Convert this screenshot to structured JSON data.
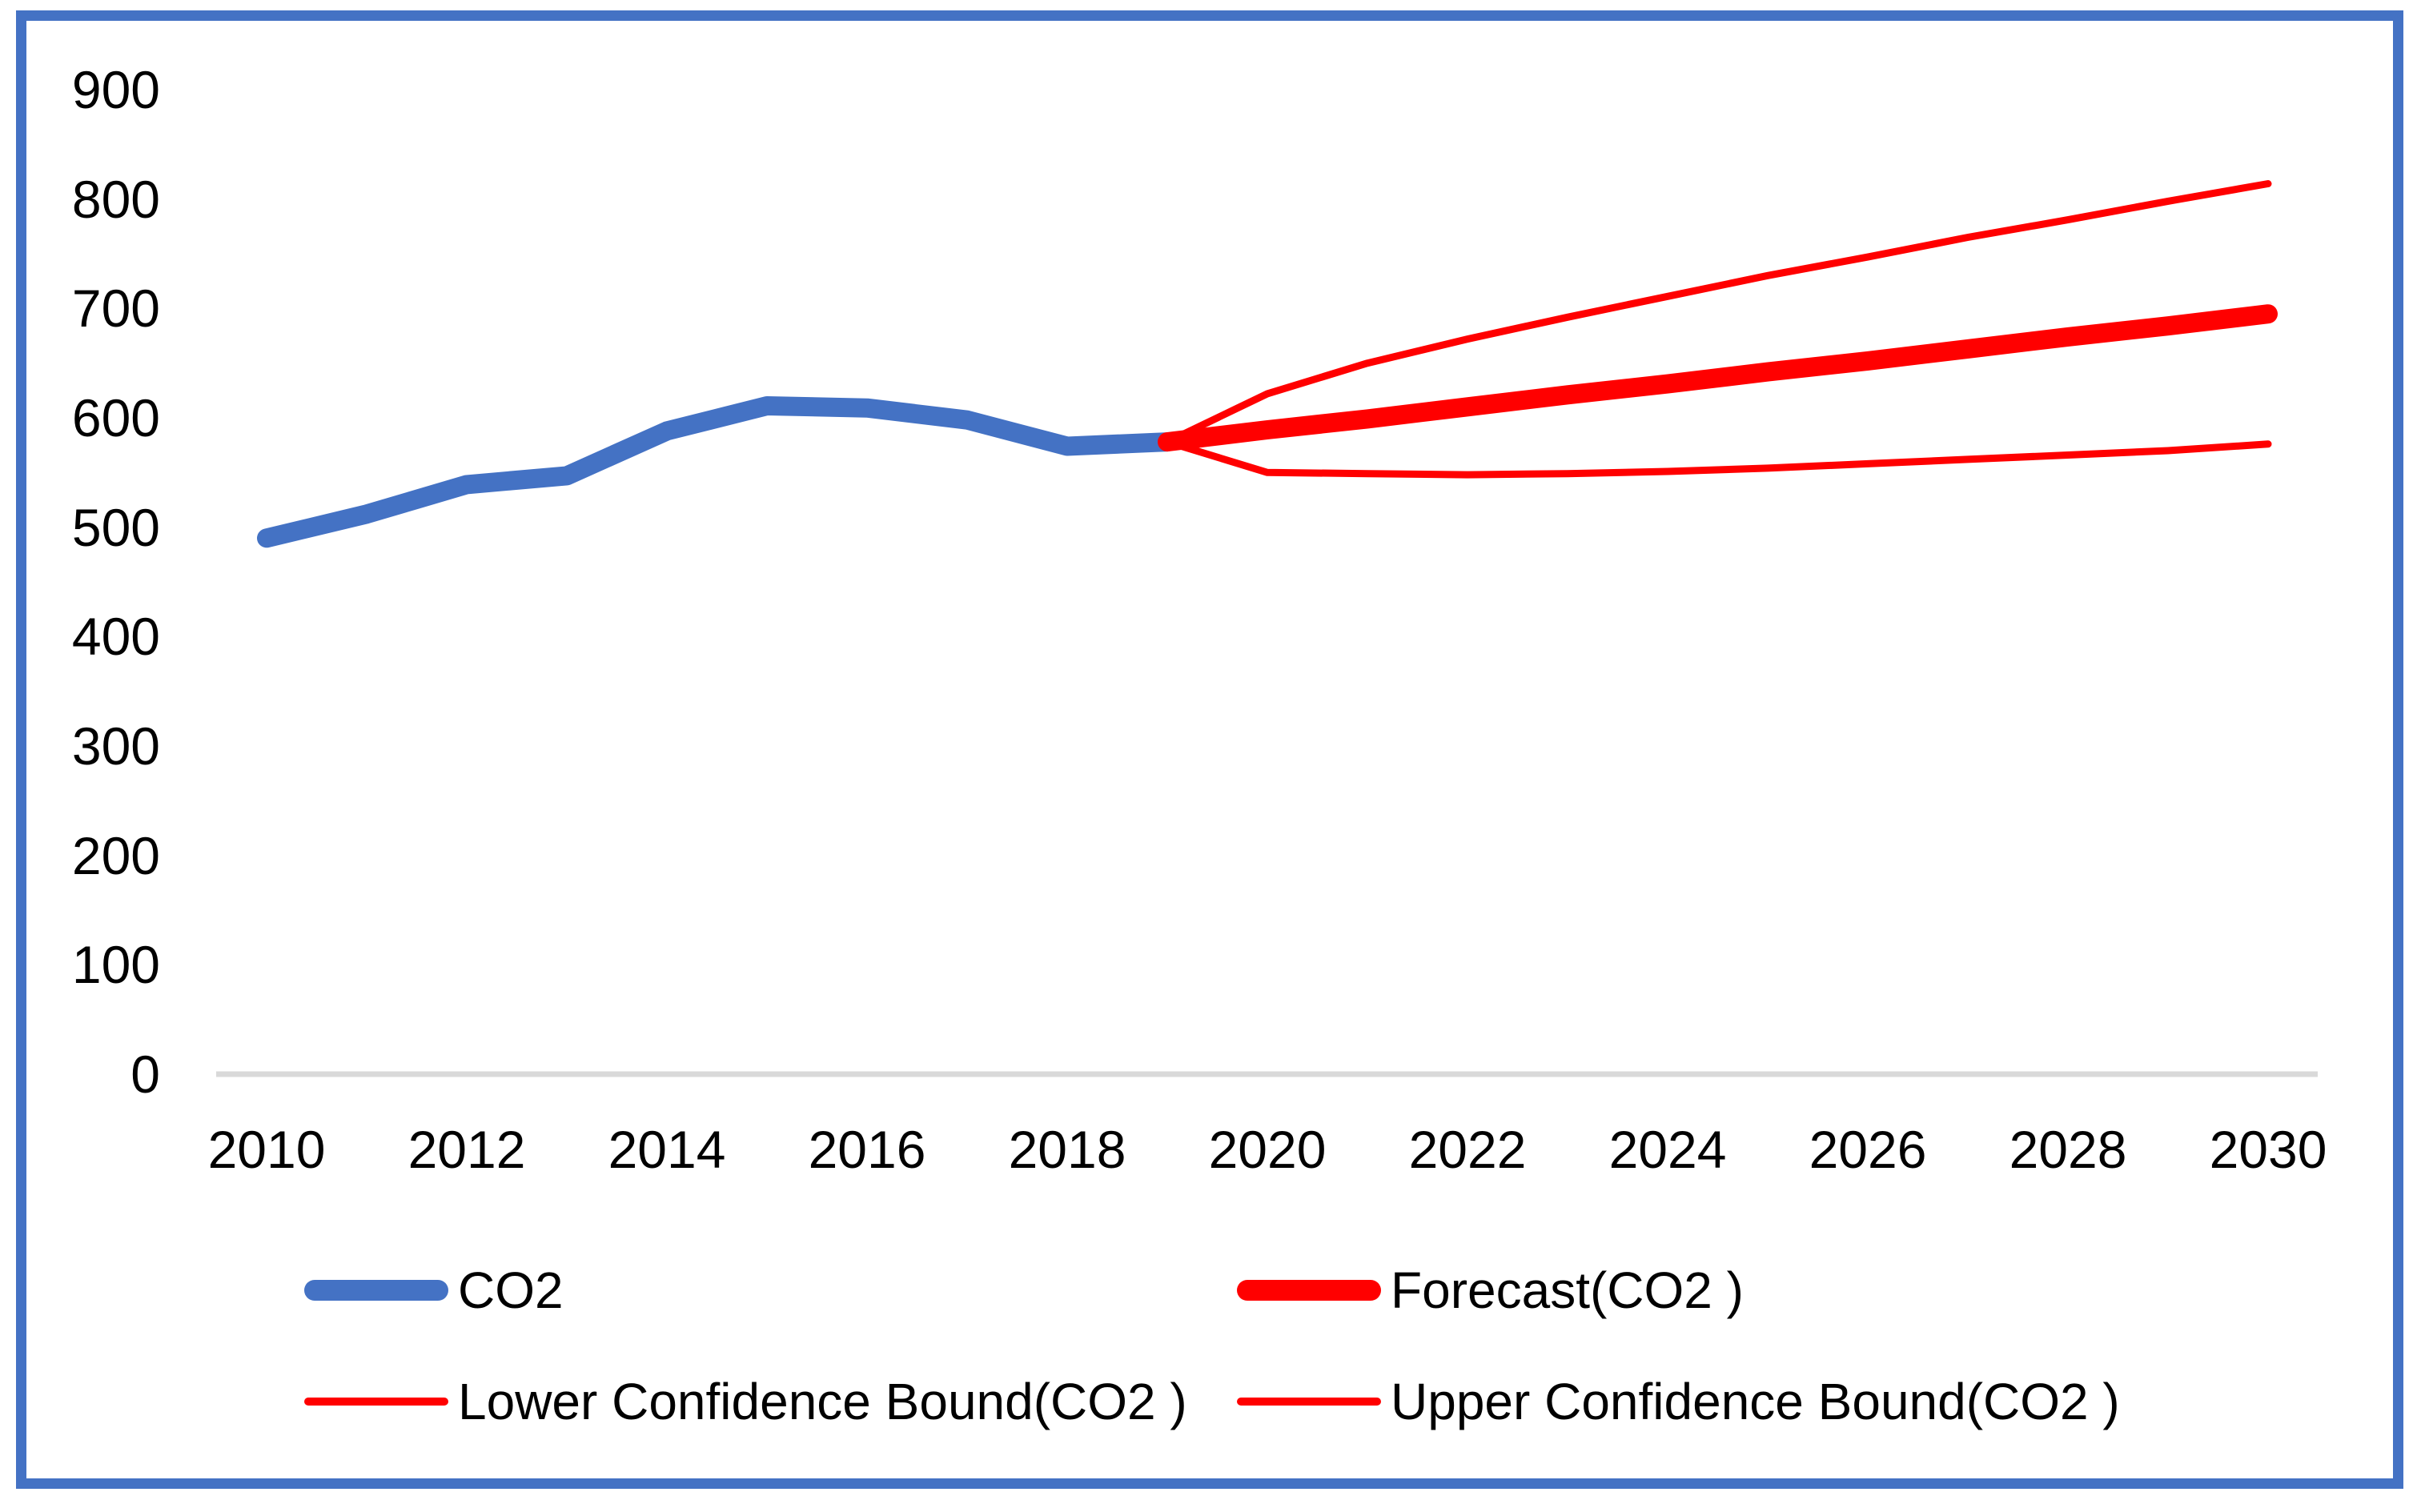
{
  "colors": {
    "series_blue": "#4472C4",
    "series_red": "#FF0000",
    "frame_border": "#4472C4",
    "axis_line": "#D9D9D9",
    "text": "#000000"
  },
  "y_axis": {
    "ticks": [
      "900",
      "800",
      "700",
      "600",
      "500",
      "400",
      "300",
      "200",
      "100",
      "0"
    ],
    "tick_values": [
      900,
      800,
      700,
      600,
      500,
      400,
      300,
      200,
      100,
      0
    ]
  },
  "x_axis": {
    "ticks": [
      "2010",
      "2012",
      "2014",
      "2016",
      "2018",
      "2020",
      "2022",
      "2024",
      "2026",
      "2028",
      "2030"
    ],
    "tick_values": [
      2010,
      2012,
      2014,
      2016,
      2018,
      2020,
      2022,
      2024,
      2026,
      2028,
      2030
    ]
  },
  "legend": {
    "entries": [
      {
        "label": "CO2",
        "color": "#4472C4",
        "style": "thick"
      },
      {
        "label": "Forecast(CO2 )",
        "color": "#FF0000",
        "style": "thick"
      },
      {
        "label": "Lower Confidence Bound(CO2 )",
        "color": "#FF0000",
        "style": "thin"
      },
      {
        "label": "Upper Confidence Bound(CO2 )",
        "color": "#FF0000",
        "style": "thin"
      }
    ]
  },
  "chart_data": {
    "type": "line",
    "title": "",
    "xlabel": "",
    "ylabel": "",
    "x_range": [
      2010,
      2030
    ],
    "ylim": [
      0,
      900
    ],
    "y_step": 100,
    "grid": "x-axis baseline only",
    "legend_position": "bottom",
    "series": [
      {
        "name": "CO2",
        "color": "#4472C4",
        "line": "thick",
        "x": [
          2010,
          2011,
          2012,
          2013,
          2014,
          2015,
          2016,
          2017,
          2018,
          2019
        ],
        "values": [
          490,
          512,
          539,
          547,
          588,
          611,
          609,
          598,
          574,
          578
        ]
      },
      {
        "name": "Forecast(CO2 )",
        "color": "#FF0000",
        "line": "thick",
        "x": [
          2019,
          2020,
          2021,
          2022,
          2023,
          2024,
          2025,
          2026,
          2027,
          2028,
          2029,
          2030
        ],
        "values": [
          578,
          589,
          599,
          610,
          621,
          631,
          642,
          652,
          663,
          674,
          684,
          695
        ]
      },
      {
        "name": "Lower Confidence Bound(CO2 )",
        "color": "#FF0000",
        "line": "thin",
        "x": [
          2019,
          2020,
          2021,
          2022,
          2023,
          2024,
          2025,
          2026,
          2027,
          2028,
          2029,
          2030
        ],
        "values": [
          578,
          550,
          549,
          548,
          549,
          551,
          554,
          558,
          562,
          566,
          570,
          576
        ]
      },
      {
        "name": "Upper Confidence Bound(CO2 )",
        "color": "#FF0000",
        "line": "thin",
        "x": [
          2019,
          2020,
          2021,
          2022,
          2023,
          2024,
          2025,
          2026,
          2027,
          2028,
          2029,
          2030
        ],
        "values": [
          578,
          622,
          650,
          672,
          692,
          711,
          730,
          747,
          765,
          781,
          798,
          814
        ]
      }
    ]
  }
}
